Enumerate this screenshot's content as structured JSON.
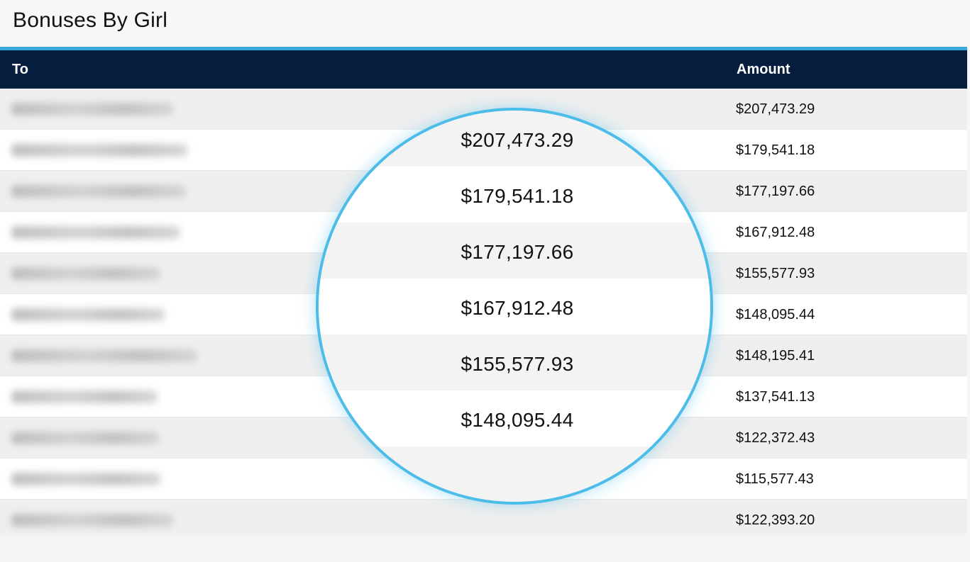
{
  "page": {
    "title": "Bonuses By Girl"
  },
  "table": {
    "columns": {
      "to": "To",
      "amount": "Amount"
    },
    "rows": [
      {
        "amount": "$207,473.29"
      },
      {
        "amount": "$179,541.18"
      },
      {
        "amount": "$177,197.66"
      },
      {
        "amount": "$167,912.48"
      },
      {
        "amount": "$155,577.93"
      },
      {
        "amount": "$148,095.44"
      },
      {
        "amount": "$148,195.41"
      },
      {
        "amount": "$137,541.13"
      },
      {
        "amount": "$122,372.43"
      },
      {
        "amount": "$115,577.43"
      },
      {
        "amount": "$122,393.20"
      }
    ]
  },
  "magnifier": {
    "amounts": [
      "$207,473.29",
      "$179,541.18",
      "$177,197.66",
      "$167,912.48",
      "$155,577.93",
      "$148,095.44"
    ]
  },
  "colors": {
    "header_bg": "#061e3d",
    "accent": "#3aa9e0",
    "magnifier_ring": "#4cbde9"
  }
}
